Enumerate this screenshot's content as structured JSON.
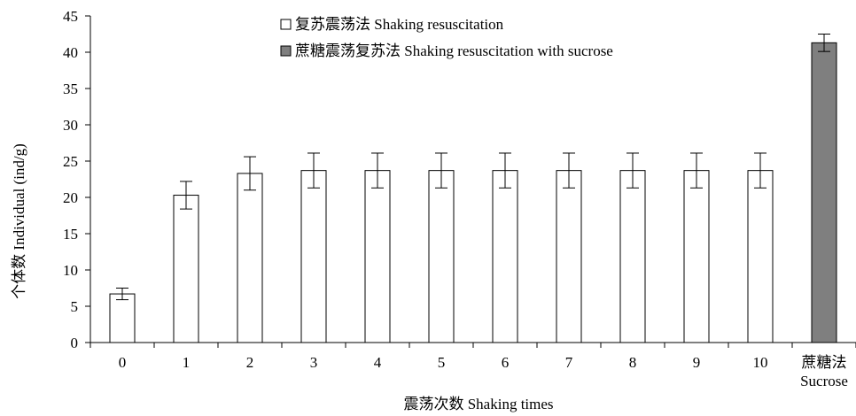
{
  "chart_data": {
    "type": "bar",
    "title": "",
    "xlabel": "震荡次数 Shaking times",
    "ylabel": "个体数 Individual (ind/g)",
    "ylim": [
      0,
      45
    ],
    "yticks": [
      0,
      5,
      10,
      15,
      20,
      25,
      30,
      35,
      40,
      45
    ],
    "grid": false,
    "legend_position": "top",
    "categories": [
      "0",
      "1",
      "2",
      "3",
      "4",
      "5",
      "6",
      "7",
      "8",
      "9",
      "10",
      "蔗糖法\nSucrose"
    ],
    "series": [
      {
        "name": "复苏震荡法 Shaking resuscitation",
        "fill": "#ffffff",
        "values": [
          6.7,
          20.3,
          23.3,
          23.7,
          23.7,
          23.7,
          23.7,
          23.7,
          23.7,
          23.7,
          23.7,
          null
        ],
        "errors": [
          0.8,
          1.9,
          2.3,
          2.4,
          2.4,
          2.4,
          2.4,
          2.4,
          2.4,
          2.4,
          2.4,
          null
        ]
      },
      {
        "name": "蔗糖震荡复苏法 Shaking resuscitation with sucrose",
        "fill": "#7f7f7f",
        "values": [
          null,
          null,
          null,
          null,
          null,
          null,
          null,
          null,
          null,
          null,
          null,
          41.3
        ],
        "errors": [
          null,
          null,
          null,
          null,
          null,
          null,
          null,
          null,
          null,
          null,
          null,
          1.2
        ]
      }
    ]
  }
}
